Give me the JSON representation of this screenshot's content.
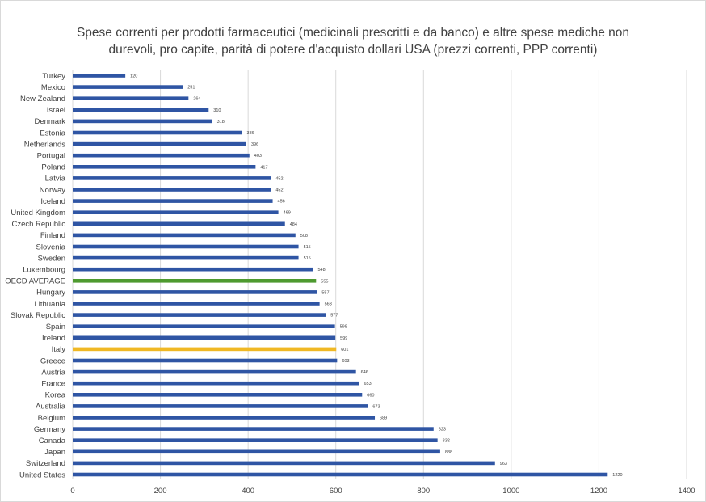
{
  "chart_data": {
    "type": "bar",
    "orientation": "horizontal",
    "title_lines": [
      "Spese correnti per prodotti farmaceutici (medicinali prescritti e da banco) e altre spese mediche non",
      "durevoli, pro capite, parità di potere d'acquisto  dollari USA (prezzi correnti, PPP correnti)"
    ],
    "xlim": [
      0,
      1400
    ],
    "xticks": [
      0,
      200,
      400,
      600,
      800,
      1000,
      1200,
      1400
    ],
    "grid": "vertical",
    "legend": "none",
    "default_color": "#2f55a4",
    "highlight_colors": {
      "OECD AVERAGE": "#4e9a2f",
      "Italy": "#f0b824"
    },
    "categories": [
      "Turkey",
      "Mexico",
      "New Zealand",
      "Israel",
      "Denmark",
      "Estonia",
      "Netherlands",
      "Portugal",
      "Poland",
      "Latvia",
      "Norway",
      "Iceland",
      "United Kingdom",
      "Czech Republic",
      "Finland",
      "Slovenia",
      "Sweden",
      "Luxembourg",
      "OECD AVERAGE",
      "Hungary",
      "Lithuania",
      "Slovak Republic",
      "Spain",
      "Ireland",
      "Italy",
      "Greece",
      "Austria",
      "France",
      "Korea",
      "Australia",
      "Belgium",
      "Germany",
      "Canada",
      "Japan",
      "Switzerland",
      "United States"
    ],
    "values": [
      120,
      251,
      264,
      310,
      318,
      386,
      396,
      403,
      417,
      452,
      452,
      456,
      469,
      484,
      508,
      515,
      515,
      548,
      555,
      557,
      563,
      577,
      598,
      599,
      601,
      603,
      646,
      653,
      660,
      673,
      689,
      823,
      832,
      838,
      963,
      1220
    ]
  }
}
